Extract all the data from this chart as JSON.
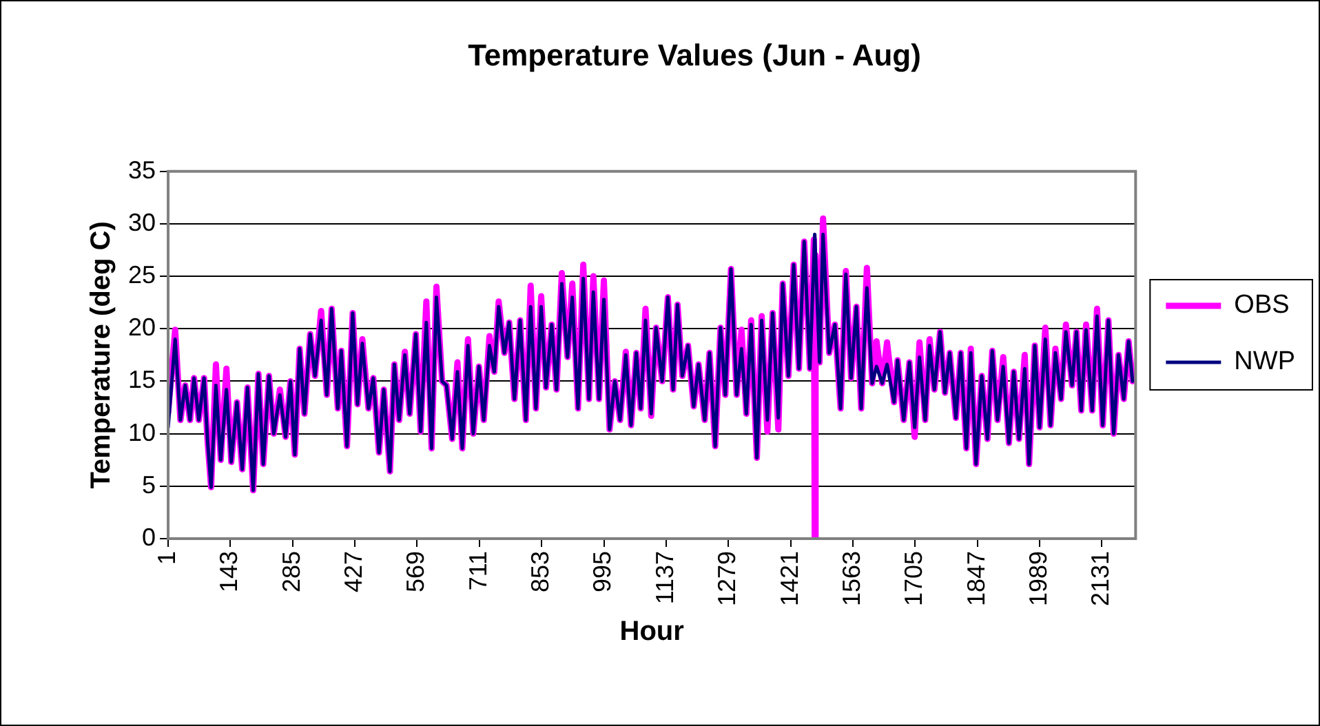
{
  "chart_data": {
    "type": "line",
    "title": "Temperature Values (Jun - Aug)",
    "xlabel": "Hour",
    "ylabel": "Temperature (deg C)",
    "xlim": [
      1,
      2208
    ],
    "xticks": [
      1,
      143,
      285,
      427,
      569,
      711,
      853,
      995,
      1137,
      1279,
      1421,
      1563,
      1705,
      1847,
      1989,
      2131
    ],
    "ylim": [
      0,
      35
    ],
    "yticks": [
      0,
      5,
      10,
      15,
      20,
      25,
      30,
      35
    ],
    "grid": "y",
    "legend": "right",
    "marker": "none",
    "line_style": "solid",
    "series": [
      {
        "name": "OBS",
        "color": "#ff00ff",
        "x": [
          1,
          17,
          29,
          40,
          51,
          60,
          71,
          83,
          91,
          99,
          110,
          121,
          134,
          145,
          158,
          170,
          182,
          195,
          207,
          218,
          231,
          242,
          256,
          269,
          280,
          290,
          301,
          312,
          325,
          336,
          350,
          363,
          374,
          388,
          396,
          409,
          422,
          433,
          444,
          458,
          469,
          482,
          493,
          507,
          517,
          528,
          541,
          552,
          566,
          577,
          590,
          602,
          613,
          626,
          636,
          649,
          661,
          672,
          685,
          697,
          710,
          721,
          734,
          745,
          755,
          768,
          779,
          791,
          804,
          817,
          828,
          840,
          852,
          863,
          876,
          887,
          899,
          912,
          923,
          936,
          948,
          961,
          971,
          984,
          995,
          1008,
          1020,
          1032,
          1045,
          1057,
          1069,
          1079,
          1090,
          1103,
          1114,
          1128,
          1141,
          1153,
          1163,
          1174,
          1187,
          1200,
          1211,
          1225,
          1236,
          1249,
          1261,
          1272,
          1285,
          1298,
          1309,
          1320,
          1331,
          1344,
          1355,
          1368,
          1380,
          1393,
          1403,
          1416,
          1428,
          1440,
          1452,
          1465,
          1474,
          1476,
          1478,
          1487,
          1495,
          1509,
          1522,
          1535,
          1547,
          1559,
          1571,
          1582,
          1595,
          1607,
          1617,
          1630,
          1641,
          1657,
          1665,
          1679,
          1692,
          1704,
          1715,
          1728,
          1738,
          1749,
          1762,
          1773,
          1784,
          1798,
          1809,
          1822,
          1832,
          1844,
          1857,
          1870,
          1881,
          1893,
          1906,
          1919,
          1930,
          1942,
          1955,
          1965,
          1978,
          1989,
          2002,
          2014,
          2025,
          2038,
          2049,
          2063,
          2073,
          2084,
          2095,
          2109,
          2120,
          2133,
          2146,
          2158,
          2169,
          2181,
          2192,
          2201
        ],
        "values": [
          12,
          19.9,
          11.3,
          14.6,
          11.3,
          15.3,
          11.3,
          15.3,
          9.3,
          4.9,
          16.6,
          7.5,
          16.2,
          7.3,
          13,
          6.6,
          14.4,
          4.6,
          15.7,
          7.1,
          15.5,
          10,
          14.2,
          9.7,
          15,
          8,
          18.1,
          11.9,
          19.5,
          15.5,
          21.7,
          13.7,
          21.9,
          12.4,
          17.9,
          8.8,
          21.5,
          12.8,
          19,
          12.4,
          15.3,
          8.2,
          14.2,
          6.4,
          16.6,
          11.3,
          17.8,
          11.9,
          19.5,
          10.2,
          22.6,
          8.6,
          24,
          15,
          14.6,
          9.5,
          16.8,
          8.6,
          19,
          10,
          16.4,
          11.3,
          19.3,
          15.9,
          22.6,
          17.7,
          20.6,
          13.3,
          20.8,
          11.3,
          24.1,
          12.4,
          23.1,
          14.4,
          20.4,
          14.2,
          25.3,
          17.3,
          24.3,
          12.4,
          26.1,
          13.3,
          25,
          13.3,
          24.6,
          10.4,
          15,
          11.3,
          17.8,
          10.8,
          17.7,
          12.4,
          21.9,
          11.7,
          20.1,
          15,
          23,
          14.2,
          22.3,
          15.5,
          18.4,
          12.6,
          16.6,
          11.3,
          17.7,
          8.8,
          20.1,
          13.7,
          25.7,
          13.7,
          19.9,
          11.9,
          20.8,
          7.7,
          21.2,
          10.2,
          21.5,
          10.4,
          24.3,
          15.5,
          26.1,
          16.2,
          28.3,
          16.2,
          28.5,
          0,
          27,
          16.8,
          30.5,
          17.7,
          20.4,
          12.4,
          25.5,
          15.3,
          22.1,
          12.4,
          25.8,
          14.8,
          18.8,
          14.8,
          18.7,
          13,
          17,
          11.3,
          16.8,
          9.7,
          18.7,
          11.3,
          19,
          14.2,
          19.7,
          13.9,
          17.7,
          11.5,
          17.7,
          8.6,
          18.1,
          7.1,
          15.5,
          9.5,
          17.9,
          11.3,
          17.3,
          9.1,
          15.9,
          9.5,
          17.5,
          7.1,
          18.4,
          10.6,
          20.1,
          10.8,
          18.1,
          13.3,
          20.4,
          14.6,
          19.7,
          12.2,
          20.4,
          12.2,
          21.9,
          10.8,
          20.8,
          10,
          17.5,
          13.3,
          18.8,
          15
        ]
      },
      {
        "name": "NWP",
        "color": "#000080",
        "x": [
          1,
          17,
          29,
          40,
          51,
          60,
          71,
          83,
          91,
          99,
          110,
          121,
          134,
          145,
          158,
          170,
          182,
          195,
          207,
          218,
          231,
          242,
          256,
          269,
          280,
          290,
          301,
          312,
          325,
          336,
          350,
          363,
          374,
          388,
          396,
          409,
          422,
          433,
          444,
          458,
          469,
          482,
          493,
          507,
          517,
          528,
          541,
          552,
          566,
          577,
          590,
          602,
          613,
          626,
          636,
          649,
          661,
          672,
          685,
          697,
          710,
          721,
          734,
          745,
          755,
          768,
          779,
          791,
          804,
          817,
          828,
          840,
          852,
          863,
          876,
          887,
          899,
          912,
          923,
          936,
          948,
          961,
          971,
          984,
          995,
          1008,
          1020,
          1032,
          1045,
          1057,
          1069,
          1079,
          1090,
          1103,
          1114,
          1128,
          1141,
          1153,
          1163,
          1174,
          1187,
          1200,
          1211,
          1225,
          1236,
          1249,
          1261,
          1272,
          1285,
          1298,
          1309,
          1320,
          1331,
          1344,
          1355,
          1368,
          1380,
          1393,
          1403,
          1416,
          1428,
          1440,
          1452,
          1465,
          1476,
          1487,
          1495,
          1509,
          1522,
          1535,
          1547,
          1559,
          1571,
          1582,
          1595,
          1607,
          1617,
          1630,
          1641,
          1657,
          1665,
          1679,
          1692,
          1704,
          1715,
          1728,
          1738,
          1749,
          1762,
          1773,
          1784,
          1798,
          1809,
          1822,
          1832,
          1844,
          1857,
          1870,
          1881,
          1893,
          1906,
          1919,
          1930,
          1942,
          1955,
          1965,
          1978,
          1989,
          2002,
          2014,
          2025,
          2038,
          2049,
          2063,
          2073,
          2084,
          2095,
          2109,
          2120,
          2133,
          2146,
          2158,
          2169,
          2181,
          2192,
          2201
        ],
        "values": [
          10.6,
          19,
          11.3,
          14.6,
          11.3,
          15.3,
          11.3,
          15.3,
          9.3,
          4.9,
          14.6,
          7.5,
          14.2,
          7.3,
          13,
          6.6,
          14.4,
          4.6,
          15.7,
          7.1,
          15.5,
          10,
          13.7,
          9.7,
          15,
          8,
          18.1,
          11.9,
          19.5,
          15.5,
          20.8,
          13.7,
          21.9,
          12.4,
          17.9,
          8.8,
          21.5,
          12.8,
          18.6,
          12.4,
          15.3,
          8.2,
          14.2,
          6.4,
          16.6,
          11.3,
          17.5,
          11.9,
          19.5,
          10.2,
          20.6,
          8.6,
          23,
          15,
          14.6,
          9.5,
          15.9,
          8.6,
          18.4,
          10,
          16.4,
          11.3,
          18.4,
          15.9,
          22.1,
          17.7,
          20.6,
          13.3,
          20.8,
          11.3,
          22.1,
          12.4,
          22.1,
          14.4,
          20.4,
          14.2,
          24.3,
          17.3,
          23,
          12.4,
          24.8,
          13.3,
          23.5,
          13.3,
          22.8,
          10.4,
          15,
          11.3,
          17.5,
          10.8,
          17.7,
          12.4,
          20.8,
          11.9,
          20.1,
          15,
          23,
          14.2,
          22.3,
          15.5,
          18.4,
          12.6,
          16.6,
          11.3,
          17.7,
          8.8,
          20.1,
          13.7,
          25.7,
          13.7,
          18.1,
          11.9,
          20.4,
          7.7,
          20.8,
          11.3,
          21.5,
          11.5,
          24.3,
          15.5,
          26.1,
          16.2,
          28.3,
          16.2,
          29,
          16.8,
          29,
          17.7,
          20.4,
          12.4,
          25.2,
          15.3,
          22.1,
          12.4,
          23.9,
          14.8,
          16.4,
          14.8,
          16.6,
          13,
          17,
          11.3,
          16.8,
          10.6,
          17.3,
          11.3,
          18.4,
          14.2,
          19.7,
          13.9,
          17.7,
          11.5,
          17.7,
          8.6,
          17.7,
          7.1,
          15.5,
          9.5,
          17.9,
          11.3,
          16.4,
          9.1,
          15.9,
          9.5,
          16.2,
          7.1,
          18.4,
          10.6,
          19,
          10.8,
          17.7,
          13.3,
          19.7,
          14.6,
          19.7,
          12.2,
          19.9,
          12.2,
          21.2,
          10.8,
          20.8,
          10,
          17.5,
          13.3,
          18.8,
          15
        ]
      }
    ]
  }
}
